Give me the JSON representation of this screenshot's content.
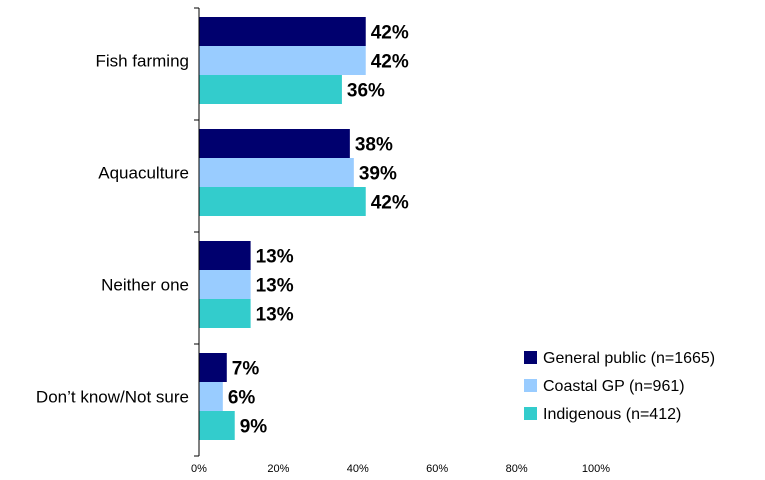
{
  "chart_data": {
    "type": "bar",
    "orientation": "horizontal",
    "categories": [
      "Fish farming",
      "Aquaculture",
      "Neither one",
      "Don’t know/Not sure"
    ],
    "series": [
      {
        "name": "General public (n=1665)",
        "color": "#00006e",
        "values": [
          42,
          38,
          13,
          7
        ]
      },
      {
        "name": "Coastal GP (n=961)",
        "color": "#99ccff",
        "values": [
          42,
          39,
          13,
          6
        ]
      },
      {
        "name": "Indigenous (n=412)",
        "color": "#33cccc",
        "values": [
          36,
          42,
          13,
          9
        ]
      }
    ],
    "value_labels": [
      [
        "42%",
        "38%",
        "13%",
        "7%"
      ],
      [
        "42%",
        "39%",
        "13%",
        "6%"
      ],
      [
        "36%",
        "42%",
        "13%",
        "9%"
      ]
    ],
    "xlim": [
      0,
      100
    ],
    "xticks": [
      0,
      20,
      40,
      60,
      80,
      100
    ],
    "xtick_labels": [
      "0%",
      "20%",
      "40%",
      "60%",
      "80%",
      "100%"
    ],
    "grid": false,
    "legend_position": "bottom-right"
  }
}
